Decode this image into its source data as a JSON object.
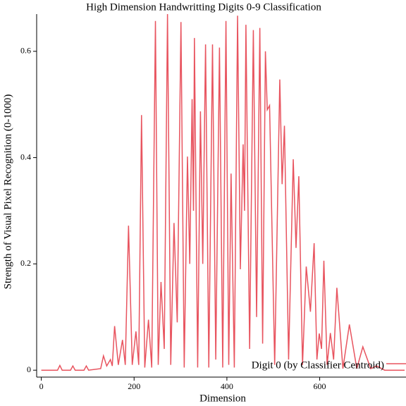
{
  "chart_data": {
    "type": "line",
    "title": "High Dimension Handwritting Digits 0-9 Classification",
    "xlabel": "Dimension",
    "ylabel": "Strength of Visual Pixel Recognition (0-1000)",
    "x": [
      0,
      35,
      40,
      45,
      63,
      68,
      73,
      92,
      97,
      102,
      128,
      134,
      141,
      149,
      153,
      158,
      166,
      175,
      181,
      188,
      196,
      204,
      210,
      216,
      223,
      231,
      238,
      246,
      252,
      258,
      265,
      272,
      279,
      286,
      293,
      301,
      308,
      315,
      320,
      325,
      328,
      330,
      337,
      343,
      348,
      354,
      361,
      369,
      376,
      384,
      391,
      398,
      404,
      409,
      416,
      423,
      429,
      435,
      438,
      441,
      449,
      457,
      464,
      471,
      477,
      483,
      487,
      492,
      503,
      514,
      519,
      524,
      533,
      543,
      549,
      555,
      563,
      571,
      580,
      588,
      594,
      599,
      604,
      609,
      616,
      623,
      630,
      637,
      650,
      664,
      680,
      693,
      710,
      723,
      740,
      783
    ],
    "series": [
      {
        "name": "Digit 0 (by Classifier Centroid)",
        "color": "#e8545f",
        "values": [
          0,
          0,
          0.009,
          0,
          0,
          0.008,
          0,
          0,
          0.008,
          0,
          0.003,
          0.027,
          0.008,
          0.02,
          0.008,
          0.083,
          0.01,
          0.057,
          0.01,
          0.272,
          0.01,
          0.073,
          0.01,
          0.48,
          0.005,
          0.095,
          0.005,
          0.657,
          0.01,
          0.166,
          0.04,
          0.67,
          0.01,
          0.277,
          0.09,
          0.655,
          0.005,
          0.402,
          0.2,
          0.51,
          0.3,
          0.625,
          0.005,
          0.487,
          0.2,
          0.613,
          0.005,
          0.613,
          0.02,
          0.607,
          0.005,
          0.657,
          0.01,
          0.37,
          0.005,
          0.667,
          0.19,
          0.425,
          0.3,
          0.65,
          0.04,
          0.64,
          0.1,
          0.644,
          0.05,
          0.6,
          0.49,
          0.498,
          0.01,
          0.547,
          0.35,
          0.46,
          0.02,
          0.397,
          0.23,
          0.365,
          0.01,
          0.195,
          0.11,
          0.239,
          0.02,
          0.069,
          0.04,
          0.206,
          0.01,
          0.07,
          0.02,
          0.155,
          0.003,
          0.086,
          0.003,
          0.044,
          0.003,
          0.008,
          0,
          0
        ]
      }
    ],
    "xlim": [
      -10,
      786
    ],
    "ylim": [
      -0.013,
      0.67
    ],
    "xticks": [
      0,
      200,
      400,
      600
    ],
    "yticks": [
      0,
      0.2,
      0.4,
      0.6
    ],
    "legend": "lower right"
  }
}
